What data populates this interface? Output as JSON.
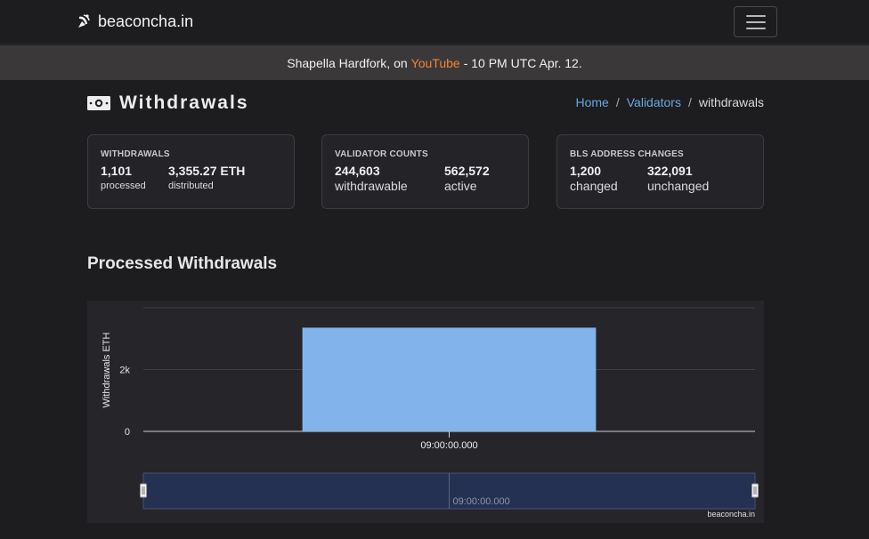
{
  "nav": {
    "brand": "beaconcha.in",
    "brand_icon": "satellite-dish-icon",
    "menu_icon": "hamburger-menu-icon"
  },
  "banner": {
    "prefix": "Shapella Hardfork, on",
    "link": "YouTube",
    "suffix": "- 10 PM UTC Apr. 12.",
    "link_color": "#f08535",
    "background": "#3b3839"
  },
  "header": {
    "title": "Withdrawals",
    "title_icon": "money-bill-icon",
    "breadcrumb": {
      "home": "Home",
      "validators": "Validators",
      "current": "withdrawals",
      "separator": "/"
    }
  },
  "cards": {
    "withdrawals": {
      "title": "WITHDRAWALS",
      "stat1_value": "1,101",
      "stat1_label": "processed",
      "stat2_value": "3,355.27 ETH",
      "stat2_label": "distributed"
    },
    "validator_counts": {
      "title": "VALIDATOR COUNTS",
      "stat1_value": "244,603",
      "stat1_label": "withdrawable",
      "stat2_value": "562,572",
      "stat2_label": "active"
    },
    "bls_changes": {
      "title": "BLS ADDRESS CHANGES",
      "stat1_value": "1,200",
      "stat1_label": "changed",
      "stat2_value": "322,091",
      "stat2_label": "unchanged"
    }
  },
  "section": {
    "title": "Processed Withdrawals"
  },
  "chart_data": {
    "type": "bar",
    "categories": [
      "09:00:00.000"
    ],
    "values": [
      3355.27
    ],
    "ylabel": "Withdrawals ETH",
    "yticks": [
      "0",
      "2k"
    ],
    "ylim": [
      0,
      4000
    ],
    "grid": true,
    "bar_color": "#82b4eb",
    "navigator_label": "09:00:00.000",
    "credit": "beaconcha.in"
  }
}
